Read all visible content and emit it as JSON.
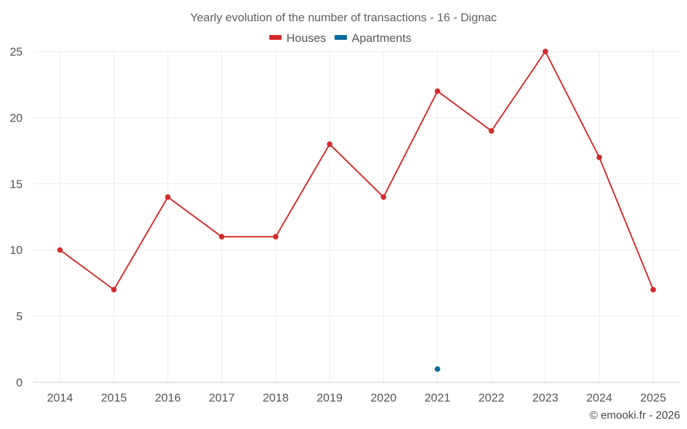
{
  "chart_data": {
    "type": "line",
    "title": "Yearly evolution of the number of transactions - 16 - Dignac",
    "xlabel": "",
    "ylabel": "",
    "categories": [
      "2014",
      "2015",
      "2016",
      "2017",
      "2018",
      "2019",
      "2020",
      "2021",
      "2022",
      "2023",
      "2024",
      "2025"
    ],
    "ylim": [
      0,
      25
    ],
    "yticks": [
      0,
      5,
      10,
      15,
      20,
      25
    ],
    "grid": true,
    "legend_position": "top-center",
    "series": [
      {
        "name": "Houses",
        "color": "#d42a2a",
        "values": [
          10,
          7,
          14,
          11,
          11,
          18,
          14,
          22,
          19,
          25,
          17,
          7
        ]
      },
      {
        "name": "Apartments",
        "color": "#0a6b9e",
        "values": [
          null,
          null,
          null,
          null,
          null,
          null,
          null,
          1,
          null,
          null,
          null,
          null
        ]
      }
    ]
  },
  "credit": "© emooki.fr - 2026"
}
